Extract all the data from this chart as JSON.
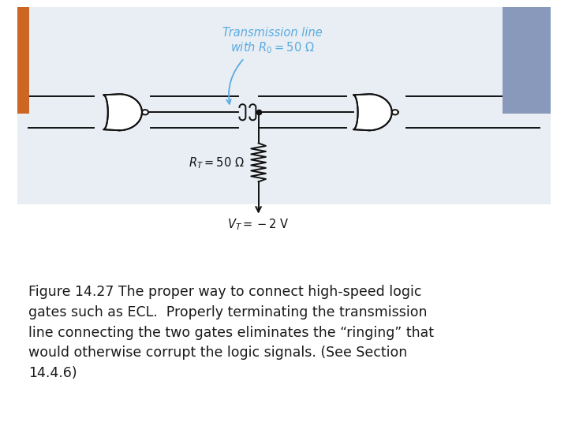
{
  "fig_width": 7.2,
  "fig_height": 5.4,
  "dpi": 100,
  "bg_color": "#ffffff",
  "circuit_bg": "#e8eef4",
  "orange_bar_color": "#cc6622",
  "blue_bar_color": "#8899bb",
  "caption_text": "Figure 14.27 The proper way to connect high-speed logic\ngates such as ECL.  Properly terminating the transmission\nline connecting the two gates eliminates the “ringing” that\nwould otherwise corrupt the logic signals. (See Section\n14.4.6)",
  "transmission_label": "Transmission line\nwith $R_0 = 50\\ \\Omega$",
  "rt_label": "$R_T = 50\\ \\Omega$",
  "vt_label": "$V_T = -2\\ \\mathrm{V}$",
  "label_color": "#5aabe0",
  "line_color": "#111111",
  "caption_fontsize": 12.5,
  "label_fontsize": 10.5,
  "sep_color": "#bbbbbb"
}
